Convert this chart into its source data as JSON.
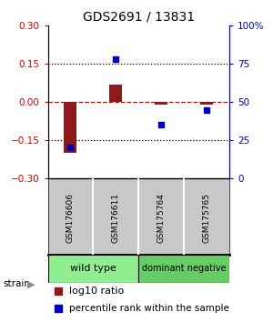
{
  "title": "GDS2691 / 13831",
  "samples": [
    "GSM176606",
    "GSM176611",
    "GSM175764",
    "GSM175765"
  ],
  "log10_ratio": [
    -0.2,
    0.07,
    -0.01,
    -0.01
  ],
  "percentile_rank": [
    20,
    78,
    35,
    45
  ],
  "ylim_left": [
    -0.3,
    0.3
  ],
  "ylim_right": [
    0,
    100
  ],
  "yticks_left": [
    -0.3,
    -0.15,
    0,
    0.15,
    0.3
  ],
  "yticks_right": [
    0,
    25,
    50,
    75,
    100
  ],
  "groups": [
    {
      "label": "wild type",
      "color": "#90EE90",
      "indices": [
        0,
        1
      ]
    },
    {
      "label": "dominant negative",
      "color": "#66CC66",
      "indices": [
        2,
        3
      ]
    }
  ],
  "bar_color": "#8B1A1A",
  "dot_color": "#0000BB",
  "zero_line_color": "#CC0000",
  "hline_color": "#000000",
  "sample_box_color": "#C8C8C8",
  "sample_box_edge_color": "#888888",
  "background_color": "#FFFFFF",
  "title_fontsize": 10,
  "tick_fontsize": 7.5,
  "legend_fontsize": 8
}
